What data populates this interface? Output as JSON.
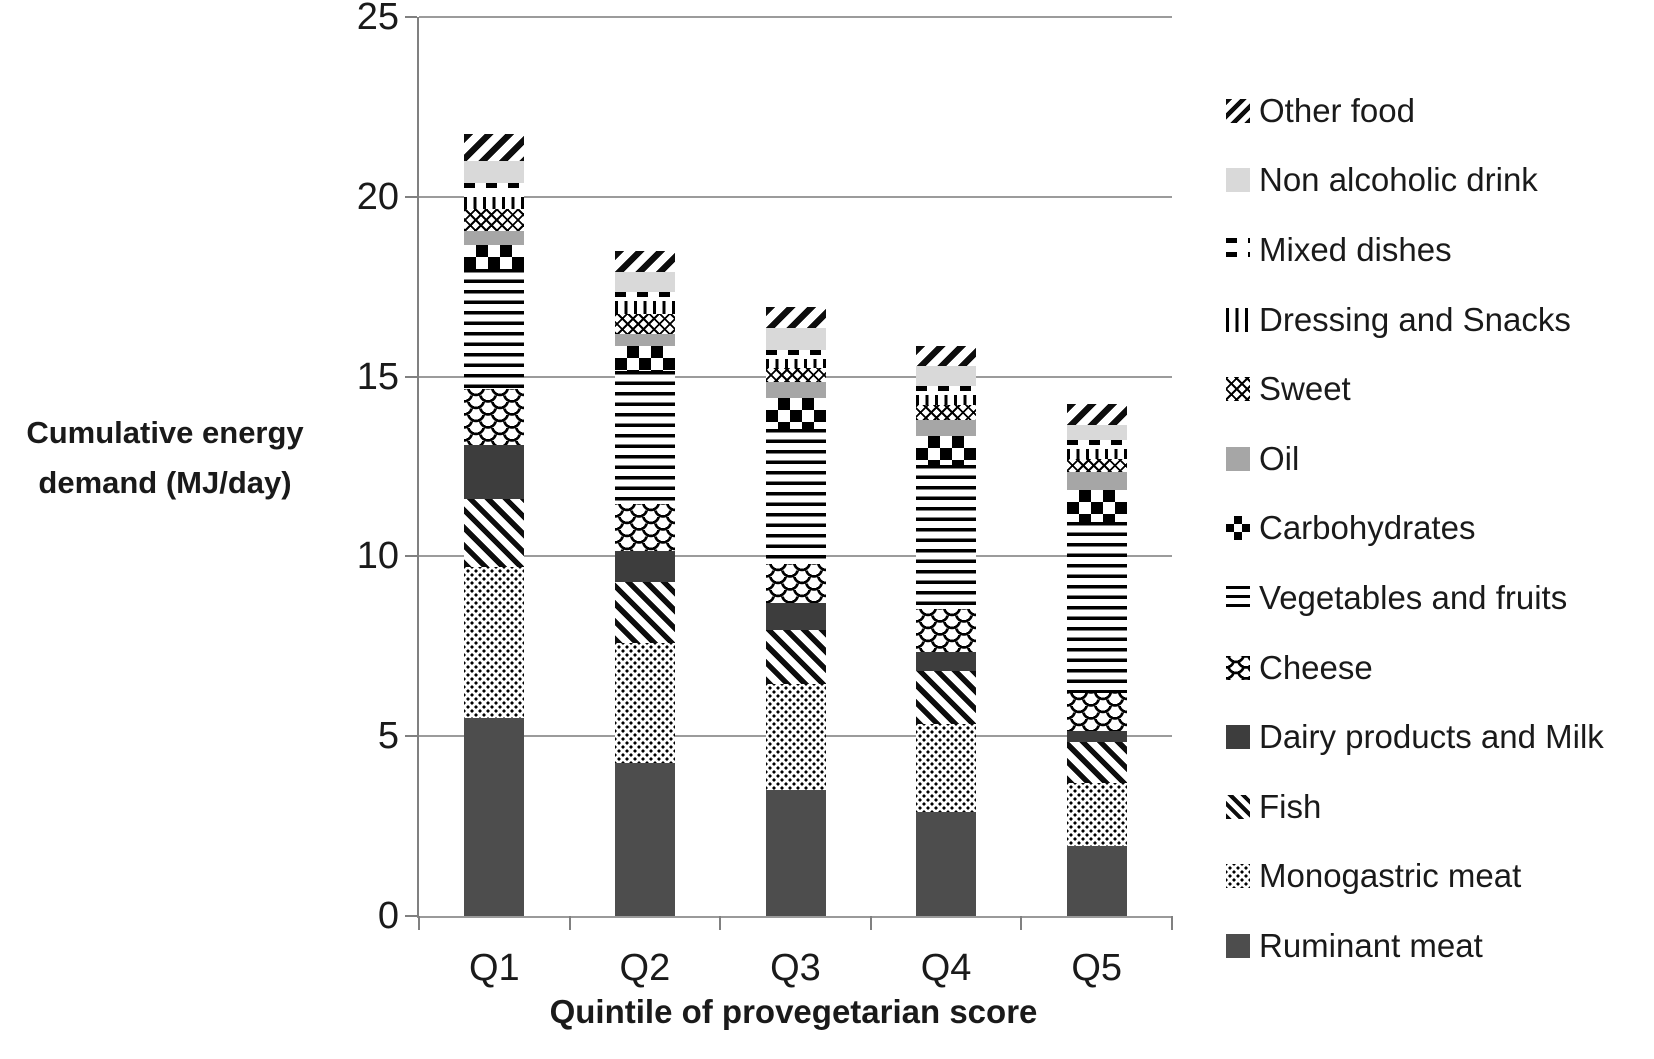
{
  "figure": {
    "y_axis_title_line1": "Cumulative energy",
    "y_axis_title_line2": "demand (MJ/day)",
    "x_axis_title": "Quintile of provegetarian score"
  },
  "chart_data": {
    "type": "bar",
    "stacked": true,
    "title": "",
    "xlabel": "Quintile of provegetarian score",
    "ylabel": "Cumulative energy demand (MJ/day)",
    "categories": [
      "Q1",
      "Q2",
      "Q3",
      "Q4",
      "Q5"
    ],
    "ylim": [
      0,
      25
    ],
    "yticks": [
      0,
      5,
      10,
      15,
      20,
      25
    ],
    "grid": true,
    "legend_position": "right",
    "legend_order": "top-of-legend corresponds to top of stack; series below are listed bottom-to-top of stack",
    "colors": {
      "ruminant_meat": "#4d4d4d",
      "dairy_products_and_milk": "#3d3d3d",
      "oil": "#a6a6a6",
      "non_alcoholic_drink": "#d9d9d9",
      "pattern_ink": "#000000",
      "pattern_background": "#ffffff",
      "gridline": "#9b9b9b"
    },
    "series": [
      {
        "name": "Ruminant meat",
        "pattern": "solid-gray",
        "values": [
          5.5,
          4.25,
          3.5,
          2.9,
          1.95
        ]
      },
      {
        "name": "Monogastric meat",
        "pattern": "dots",
        "values": [
          4.2,
          3.35,
          2.95,
          2.45,
          1.75
        ]
      },
      {
        "name": "Fish",
        "pattern": "diag-down",
        "values": [
          1.9,
          1.7,
          1.5,
          1.45,
          1.15
        ]
      },
      {
        "name": "Dairy products and Milk",
        "pattern": "solid-darkgray",
        "values": [
          1.5,
          0.85,
          0.75,
          0.55,
          0.3
        ]
      },
      {
        "name": "Cheese",
        "pattern": "scales",
        "values": [
          1.55,
          1.3,
          1.1,
          1.2,
          1.05
        ]
      },
      {
        "name": "Vegetables and fruits",
        "pattern": "hlines",
        "values": [
          3.35,
          3.7,
          3.75,
          4.0,
          4.75
        ]
      },
      {
        "name": "Carbohydrates",
        "pattern": "checker",
        "values": [
          0.65,
          0.7,
          0.85,
          0.8,
          0.9
        ]
      },
      {
        "name": "Oil",
        "pattern": "solid-midgray",
        "values": [
          0.4,
          0.35,
          0.45,
          0.45,
          0.5
        ]
      },
      {
        "name": "Sweet",
        "pattern": "crosshatch",
        "values": [
          0.6,
          0.55,
          0.4,
          0.4,
          0.35
        ]
      },
      {
        "name": "Dressing and Snacks",
        "pattern": "vlines",
        "values": [
          0.35,
          0.35,
          0.25,
          0.3,
          0.3
        ]
      },
      {
        "name": "Mixed dishes",
        "pattern": "dash",
        "values": [
          0.4,
          0.25,
          0.25,
          0.25,
          0.25
        ]
      },
      {
        "name": "Non alcoholic drink",
        "pattern": "solid-lightgray",
        "values": [
          0.6,
          0.55,
          0.6,
          0.55,
          0.4
        ]
      },
      {
        "name": "Other food",
        "pattern": "diag-up",
        "values": [
          0.75,
          0.6,
          0.6,
          0.55,
          0.6
        ]
      }
    ],
    "totals": [
      21.75,
      18.5,
      16.95,
      15.85,
      14.25
    ]
  }
}
